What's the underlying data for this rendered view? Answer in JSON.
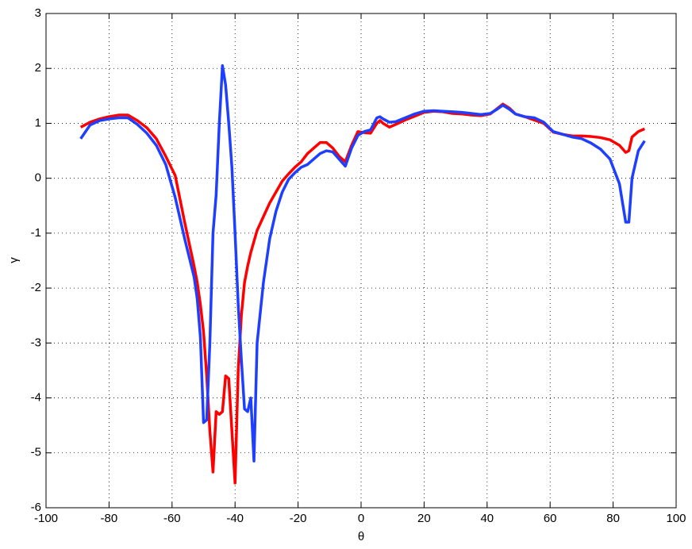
{
  "chart_data": {
    "type": "line",
    "xlabel": "θ",
    "ylabel": "γ",
    "x": [
      -89,
      -86,
      -83,
      -80,
      -77,
      -74,
      -71,
      -68,
      -65,
      -62,
      -59,
      -56,
      -53,
      -52,
      -51,
      -50,
      -49,
      -48,
      -47,
      -46,
      -45,
      -44,
      -43,
      -42,
      -41,
      -40,
      -39,
      -38,
      -37,
      -36,
      -35,
      -34,
      -33,
      -31,
      -29,
      -27,
      -25,
      -23,
      -21,
      -19,
      -17,
      -15,
      -13,
      -11,
      -9,
      -7,
      -5,
      -3,
      -1,
      1,
      3,
      5,
      6,
      7,
      9,
      11,
      14,
      17,
      20,
      23,
      26,
      29,
      32,
      35,
      38,
      41,
      43,
      45,
      47,
      49,
      52,
      55,
      58,
      61,
      64,
      67,
      70,
      73,
      76,
      79,
      82,
      84,
      85,
      86,
      88,
      90
    ],
    "series": [
      {
        "color": "#ff0000",
        "values": [
          0.93,
          1.02,
          1.08,
          1.12,
          1.15,
          1.15,
          1.05,
          0.92,
          0.72,
          0.4,
          0.05,
          -0.8,
          -1.6,
          -1.9,
          -2.3,
          -2.8,
          -3.6,
          -4.6,
          -5.35,
          -4.25,
          -4.3,
          -4.25,
          -3.6,
          -3.65,
          -4.6,
          -5.55,
          -3.5,
          -2.5,
          -1.9,
          -1.6,
          -1.35,
          -1.15,
          -0.95,
          -0.7,
          -0.45,
          -0.25,
          -0.05,
          0.08,
          0.2,
          0.3,
          0.45,
          0.55,
          0.65,
          0.65,
          0.55,
          0.4,
          0.3,
          0.6,
          0.85,
          0.83,
          0.82,
          1.0,
          1.05,
          1.0,
          0.93,
          0.98,
          1.06,
          1.13,
          1.2,
          1.22,
          1.21,
          1.18,
          1.17,
          1.15,
          1.14,
          1.17,
          1.26,
          1.35,
          1.28,
          1.17,
          1.12,
          1.06,
          1.0,
          0.84,
          0.8,
          0.77,
          0.77,
          0.76,
          0.74,
          0.7,
          0.6,
          0.47,
          0.5,
          0.75,
          0.85,
          0.9
        ]
      },
      {
        "color": "#1f3fff",
        "values": [
          0.72,
          0.97,
          1.05,
          1.08,
          1.1,
          1.1,
          0.98,
          0.82,
          0.6,
          0.25,
          -0.35,
          -1.1,
          -1.8,
          -2.2,
          -2.9,
          -4.45,
          -4.4,
          -3.0,
          -1.0,
          -0.3,
          1.0,
          2.05,
          1.7,
          1.0,
          0.2,
          -1.0,
          -2.3,
          -3.3,
          -4.2,
          -4.25,
          -4.0,
          -5.15,
          -3.0,
          -1.9,
          -1.1,
          -0.6,
          -0.25,
          -0.02,
          0.1,
          0.2,
          0.25,
          0.35,
          0.45,
          0.5,
          0.48,
          0.35,
          0.22,
          0.55,
          0.78,
          0.85,
          0.88,
          1.1,
          1.12,
          1.08,
          1.02,
          1.03,
          1.1,
          1.17,
          1.22,
          1.23,
          1.22,
          1.21,
          1.2,
          1.18,
          1.16,
          1.18,
          1.25,
          1.33,
          1.26,
          1.17,
          1.12,
          1.1,
          1.02,
          0.85,
          0.8,
          0.75,
          0.72,
          0.64,
          0.53,
          0.35,
          -0.1,
          -0.8,
          -0.8,
          0.0,
          0.5,
          0.68
        ]
      }
    ],
    "xlim": [
      -100,
      100
    ],
    "xticks": [
      -100,
      -80,
      -60,
      -40,
      -20,
      0,
      20,
      40,
      60,
      80,
      100
    ],
    "ylim": [
      -6,
      3
    ],
    "yticks": [
      -6,
      -5,
      -4,
      -3,
      -2,
      -1,
      0,
      1,
      2,
      3
    ],
    "grid": true
  }
}
